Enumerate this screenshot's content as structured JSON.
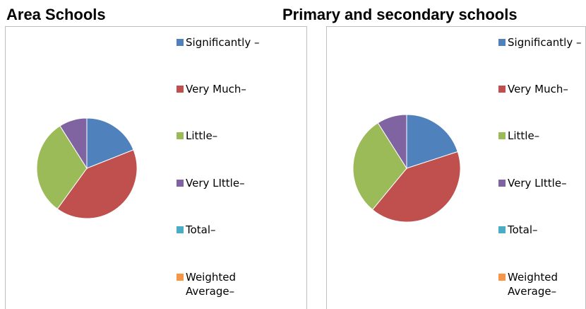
{
  "chart_data": [
    {
      "type": "pie",
      "title": "Area Schools",
      "categories": [
        "Significantly –",
        "Very Much–",
        "Little–",
        "Very LIttle–",
        "Total–",
        "Weighted Average–"
      ],
      "values": [
        19,
        41,
        31,
        9,
        0,
        0
      ],
      "colors": [
        "#4f81bd",
        "#c0504d",
        "#9bbb59",
        "#8064a2",
        "#4bacc6",
        "#f79646"
      ]
    },
    {
      "type": "pie",
      "title": "Primary and secondary schools",
      "categories": [
        "Significantly –",
        "Very Much–",
        "Little–",
        "Very LIttle–",
        "Total–",
        "Weighted Average–"
      ],
      "values": [
        20,
        41,
        30,
        9,
        0,
        0
      ],
      "colors": [
        "#4f81bd",
        "#c0504d",
        "#9bbb59",
        "#8064a2",
        "#4bacc6",
        "#f79646"
      ]
    }
  ]
}
